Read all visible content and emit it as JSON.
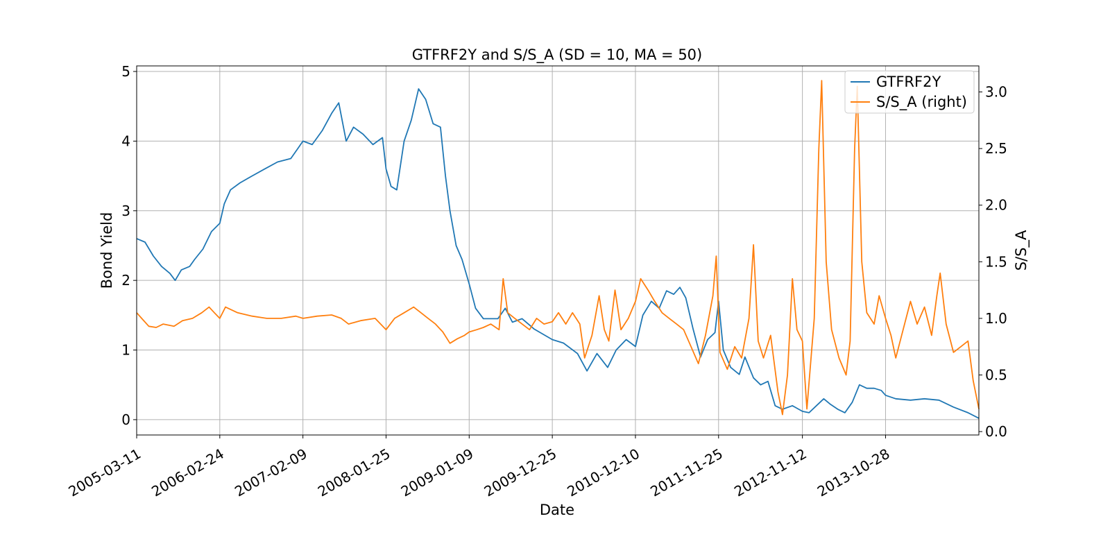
{
  "chart_data": {
    "type": "line",
    "title": "GTFRF2Y and S/S_A (SD = 10, MA = 50)",
    "xlabel": "Date",
    "ylabel": "Bond Yield",
    "ylabel_right": "S/S_A",
    "x_range": [
      "2005-03-11",
      "2014-11-25"
    ],
    "ylim": [
      -0.22,
      5.08
    ],
    "ylim_right": [
      -0.03,
      3.23
    ],
    "x_ticks": [
      "2005-03-11",
      "2006-02-24",
      "2007-02-09",
      "2008-01-25",
      "2009-01-09",
      "2009-12-25",
      "2010-12-10",
      "2011-11-25",
      "2012-11-12",
      "2013-10-28"
    ],
    "y_ticks": [
      "0",
      "1",
      "2",
      "3",
      "4",
      "5"
    ],
    "y_ticks_right": [
      "0.0",
      "0.5",
      "1.0",
      "1.5",
      "2.0",
      "2.5",
      "3.0"
    ],
    "grid": true,
    "legend_position": "top-right",
    "series": [
      {
        "name": "GTFRF2Y",
        "axis": "left",
        "color": "#1f77b4",
        "points": [
          [
            "2005-03-11",
            2.6
          ],
          [
            "2005-04-15",
            2.55
          ],
          [
            "2005-05-20",
            2.35
          ],
          [
            "2005-06-24",
            2.2
          ],
          [
            "2005-07-29",
            2.1
          ],
          [
            "2005-08-20",
            2.0
          ],
          [
            "2005-09-15",
            2.15
          ],
          [
            "2005-10-20",
            2.2
          ],
          [
            "2005-11-10",
            2.3
          ],
          [
            "2005-12-15",
            2.45
          ],
          [
            "2006-01-20",
            2.7
          ],
          [
            "2006-02-24",
            2.82
          ],
          [
            "2006-03-15",
            3.1
          ],
          [
            "2006-04-10",
            3.3
          ],
          [
            "2006-05-20",
            3.4
          ],
          [
            "2006-07-10",
            3.5
          ],
          [
            "2006-09-01",
            3.6
          ],
          [
            "2006-10-25",
            3.7
          ],
          [
            "2006-12-20",
            3.75
          ],
          [
            "2007-01-20",
            3.9
          ],
          [
            "2007-02-09",
            4.0
          ],
          [
            "2007-03-20",
            3.95
          ],
          [
            "2007-05-01",
            4.15
          ],
          [
            "2007-06-10",
            4.4
          ],
          [
            "2007-07-10",
            4.55
          ],
          [
            "2007-08-10",
            4.0
          ],
          [
            "2007-09-10",
            4.2
          ],
          [
            "2007-10-20",
            4.1
          ],
          [
            "2007-12-01",
            3.95
          ],
          [
            "2008-01-10",
            4.05
          ],
          [
            "2008-01-25",
            3.6
          ],
          [
            "2008-02-15",
            3.35
          ],
          [
            "2008-03-10",
            3.3
          ],
          [
            "2008-04-10",
            4.0
          ],
          [
            "2008-05-10",
            4.3
          ],
          [
            "2008-06-10",
            4.75
          ],
          [
            "2008-07-10",
            4.6
          ],
          [
            "2008-08-10",
            4.25
          ],
          [
            "2008-09-10",
            4.2
          ],
          [
            "2008-10-01",
            3.5
          ],
          [
            "2008-10-20",
            3.0
          ],
          [
            "2008-11-15",
            2.5
          ],
          [
            "2008-12-10",
            2.3
          ],
          [
            "2009-01-09",
            1.95
          ],
          [
            "2009-02-05",
            1.6
          ],
          [
            "2009-03-10",
            1.45
          ],
          [
            "2009-05-10",
            1.45
          ],
          [
            "2009-06-10",
            1.6
          ],
          [
            "2009-07-10",
            1.4
          ],
          [
            "2009-08-20",
            1.45
          ],
          [
            "2009-10-10",
            1.3
          ],
          [
            "2009-12-25",
            1.15
          ],
          [
            "2010-02-10",
            1.1
          ],
          [
            "2010-04-10",
            0.95
          ],
          [
            "2010-05-20",
            0.7
          ],
          [
            "2010-07-01",
            0.95
          ],
          [
            "2010-08-15",
            0.75
          ],
          [
            "2010-09-20",
            1.0
          ],
          [
            "2010-11-01",
            1.15
          ],
          [
            "2010-12-10",
            1.05
          ],
          [
            "2011-01-10",
            1.5
          ],
          [
            "2011-02-15",
            1.7
          ],
          [
            "2011-03-20",
            1.6
          ],
          [
            "2011-04-20",
            1.85
          ],
          [
            "2011-05-20",
            1.8
          ],
          [
            "2011-06-15",
            1.9
          ],
          [
            "2011-07-10",
            1.75
          ],
          [
            "2011-08-10",
            1.3
          ],
          [
            "2011-09-10",
            0.9
          ],
          [
            "2011-10-10",
            1.15
          ],
          [
            "2011-11-10",
            1.25
          ],
          [
            "2011-11-25",
            1.7
          ],
          [
            "2011-12-15",
            1.0
          ],
          [
            "2012-01-15",
            0.75
          ],
          [
            "2012-02-20",
            0.65
          ],
          [
            "2012-03-15",
            0.9
          ],
          [
            "2012-04-20",
            0.6
          ],
          [
            "2012-05-20",
            0.5
          ],
          [
            "2012-06-20",
            0.55
          ],
          [
            "2012-07-20",
            0.2
          ],
          [
            "2012-08-20",
            0.15
          ],
          [
            "2012-10-01",
            0.2
          ],
          [
            "2012-11-12",
            0.12
          ],
          [
            "2012-12-10",
            0.1
          ],
          [
            "2013-01-10",
            0.2
          ],
          [
            "2013-02-10",
            0.3
          ],
          [
            "2013-03-10",
            0.22
          ],
          [
            "2013-04-10",
            0.15
          ],
          [
            "2013-05-10",
            0.1
          ],
          [
            "2013-06-10",
            0.25
          ],
          [
            "2013-07-10",
            0.5
          ],
          [
            "2013-08-10",
            0.45
          ],
          [
            "2013-09-10",
            0.45
          ],
          [
            "2013-10-10",
            0.42
          ],
          [
            "2013-10-28",
            0.35
          ],
          [
            "2013-12-10",
            0.3
          ],
          [
            "2014-02-10",
            0.28
          ],
          [
            "2014-04-10",
            0.3
          ],
          [
            "2014-06-10",
            0.28
          ],
          [
            "2014-08-10",
            0.18
          ],
          [
            "2014-10-10",
            0.1
          ],
          [
            "2014-11-25",
            0.02
          ]
        ]
      },
      {
        "name": "S/S_A (right)",
        "axis": "right",
        "color": "#ff7f0e",
        "points": [
          [
            "2005-03-11",
            1.05
          ],
          [
            "2005-04-01",
            1.0
          ],
          [
            "2005-05-01",
            0.93
          ],
          [
            "2005-06-01",
            0.92
          ],
          [
            "2005-07-01",
            0.95
          ],
          [
            "2005-08-15",
            0.93
          ],
          [
            "2005-09-20",
            0.98
          ],
          [
            "2005-11-01",
            1.0
          ],
          [
            "2005-12-10",
            1.05
          ],
          [
            "2006-01-10",
            1.1
          ],
          [
            "2006-02-01",
            1.05
          ],
          [
            "2006-02-24",
            1.0
          ],
          [
            "2006-03-20",
            1.1
          ],
          [
            "2006-05-10",
            1.05
          ],
          [
            "2006-07-10",
            1.02
          ],
          [
            "2006-09-10",
            1.0
          ],
          [
            "2006-11-10",
            1.0
          ],
          [
            "2007-01-10",
            1.02
          ],
          [
            "2007-02-09",
            1.0
          ],
          [
            "2007-04-10",
            1.02
          ],
          [
            "2007-06-10",
            1.03
          ],
          [
            "2007-07-20",
            1.0
          ],
          [
            "2007-08-20",
            0.95
          ],
          [
            "2007-10-10",
            0.98
          ],
          [
            "2007-12-10",
            1.0
          ],
          [
            "2008-01-25",
            0.9
          ],
          [
            "2008-03-01",
            1.0
          ],
          [
            "2008-04-10",
            1.05
          ],
          [
            "2008-05-20",
            1.1
          ],
          [
            "2008-06-20",
            1.05
          ],
          [
            "2008-07-20",
            1.0
          ],
          [
            "2008-08-20",
            0.95
          ],
          [
            "2008-09-20",
            0.88
          ],
          [
            "2008-10-20",
            0.78
          ],
          [
            "2008-11-20",
            0.82
          ],
          [
            "2008-12-20",
            0.85
          ],
          [
            "2009-01-09",
            0.88
          ],
          [
            "2009-02-10",
            0.9
          ],
          [
            "2009-03-10",
            0.92
          ],
          [
            "2009-04-10",
            0.95
          ],
          [
            "2009-05-15",
            0.9
          ],
          [
            "2009-06-01",
            1.35
          ],
          [
            "2009-06-20",
            1.05
          ],
          [
            "2009-07-20",
            1.0
          ],
          [
            "2009-08-20",
            0.95
          ],
          [
            "2009-09-20",
            0.9
          ],
          [
            "2009-10-20",
            1.0
          ],
          [
            "2009-11-20",
            0.95
          ],
          [
            "2009-12-25",
            0.97
          ],
          [
            "2010-01-20",
            1.05
          ],
          [
            "2010-02-20",
            0.95
          ],
          [
            "2010-03-20",
            1.05
          ],
          [
            "2010-04-20",
            0.95
          ],
          [
            "2010-05-10",
            0.65
          ],
          [
            "2010-06-10",
            0.85
          ],
          [
            "2010-07-10",
            1.2
          ],
          [
            "2010-08-01",
            0.9
          ],
          [
            "2010-08-20",
            0.8
          ],
          [
            "2010-09-15",
            1.25
          ],
          [
            "2010-10-10",
            0.9
          ],
          [
            "2010-11-10",
            1.0
          ],
          [
            "2010-12-10",
            1.15
          ],
          [
            "2011-01-01",
            1.35
          ],
          [
            "2011-02-01",
            1.25
          ],
          [
            "2011-03-01",
            1.15
          ],
          [
            "2011-04-01",
            1.05
          ],
          [
            "2011-05-01",
            1.0
          ],
          [
            "2011-06-01",
            0.95
          ],
          [
            "2011-07-01",
            0.9
          ],
          [
            "2011-08-01",
            0.75
          ],
          [
            "2011-09-01",
            0.6
          ],
          [
            "2011-10-01",
            0.85
          ],
          [
            "2011-11-01",
            1.2
          ],
          [
            "2011-11-15",
            1.55
          ],
          [
            "2011-12-01",
            0.7
          ],
          [
            "2012-01-01",
            0.55
          ],
          [
            "2012-02-01",
            0.75
          ],
          [
            "2012-03-01",
            0.65
          ],
          [
            "2012-04-01",
            1.0
          ],
          [
            "2012-04-20",
            1.65
          ],
          [
            "2012-05-10",
            0.8
          ],
          [
            "2012-06-01",
            0.65
          ],
          [
            "2012-07-01",
            0.85
          ],
          [
            "2012-08-01",
            0.35
          ],
          [
            "2012-08-20",
            0.15
          ],
          [
            "2012-09-10",
            0.5
          ],
          [
            "2012-10-01",
            1.35
          ],
          [
            "2012-10-20",
            0.9
          ],
          [
            "2012-11-12",
            0.8
          ],
          [
            "2012-12-01",
            0.2
          ],
          [
            "2013-01-01",
            1.0
          ],
          [
            "2013-01-20",
            2.5
          ],
          [
            "2013-02-01",
            3.1
          ],
          [
            "2013-02-20",
            1.5
          ],
          [
            "2013-03-15",
            0.9
          ],
          [
            "2013-04-15",
            0.65
          ],
          [
            "2013-05-15",
            0.5
          ],
          [
            "2013-06-01",
            0.8
          ],
          [
            "2013-06-20",
            2.5
          ],
          [
            "2013-07-01",
            3.05
          ],
          [
            "2013-07-20",
            1.5
          ],
          [
            "2013-08-10",
            1.05
          ],
          [
            "2013-09-10",
            0.95
          ],
          [
            "2013-10-01",
            1.2
          ],
          [
            "2013-10-28",
            1.0
          ],
          [
            "2013-11-20",
            0.85
          ],
          [
            "2013-12-10",
            0.65
          ],
          [
            "2014-01-10",
            0.9
          ],
          [
            "2014-02-10",
            1.15
          ],
          [
            "2014-03-10",
            0.95
          ],
          [
            "2014-04-10",
            1.1
          ],
          [
            "2014-05-10",
            0.85
          ],
          [
            "2014-06-01",
            1.2
          ],
          [
            "2014-06-15",
            1.4
          ],
          [
            "2014-07-10",
            0.95
          ],
          [
            "2014-08-10",
            0.7
          ],
          [
            "2014-09-10",
            0.75
          ],
          [
            "2014-10-10",
            0.8
          ],
          [
            "2014-11-01",
            0.45
          ],
          [
            "2014-11-25",
            0.2
          ]
        ]
      }
    ]
  }
}
